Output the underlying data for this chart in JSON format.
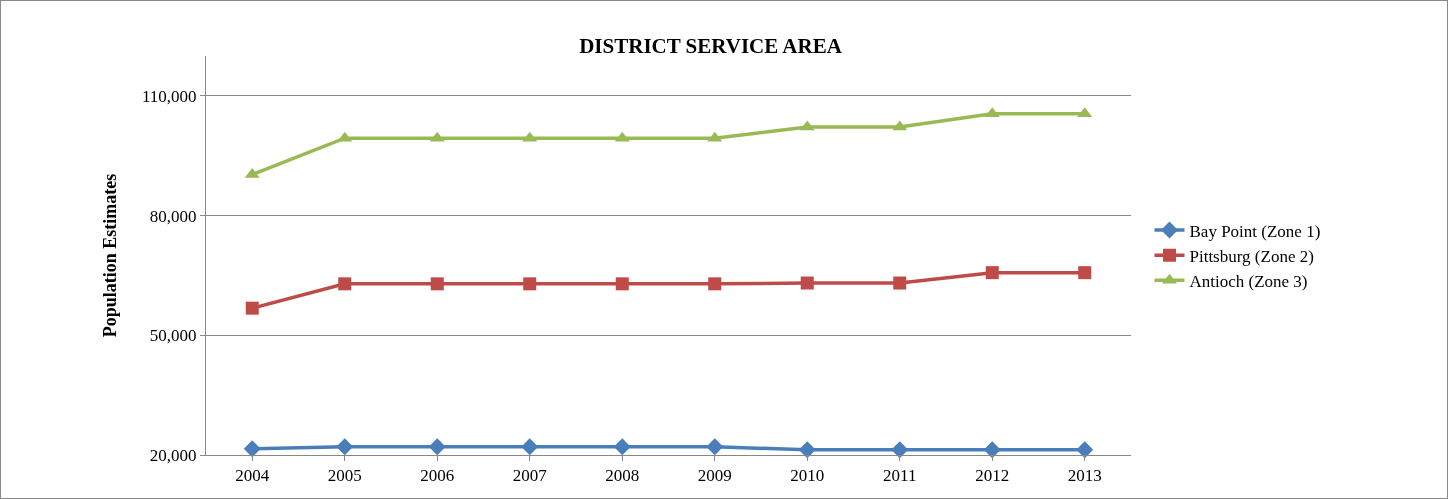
{
  "chart_data": {
    "type": "line",
    "title": "DISTRICT SERVICE AREA",
    "ylabel": "Population Estimates",
    "categories": [
      "2004",
      "2005",
      "2006",
      "2007",
      "2008",
      "2009",
      "2010",
      "2011",
      "2012",
      "2013"
    ],
    "series": [
      {
        "name": "Bay Point (Zone 1)",
        "color": "#4a7ebb",
        "marker": "diamond",
        "values": [
          21550,
          22050,
          22050,
          22050,
          22050,
          22050,
          21300,
          21300,
          21300,
          21300
        ]
      },
      {
        "name": "Pittsburg (Zone 2)",
        "color": "#be4b48",
        "marker": "square",
        "values": [
          56800,
          62900,
          62900,
          62900,
          62900,
          62900,
          63100,
          63100,
          65700,
          65700
        ]
      },
      {
        "name": "Antioch (Zone 3)",
        "color": "#98b954",
        "marker": "triangle",
        "values": [
          90300,
          99400,
          99400,
          99400,
          99400,
          99400,
          102200,
          102200,
          105500,
          105500
        ]
      }
    ],
    "ylim": [
      20000,
      120000
    ],
    "yticks": [
      {
        "value": 20000,
        "label": "20,000"
      },
      {
        "value": 50000,
        "label": "50,000"
      },
      {
        "value": 80000,
        "label": "80,000"
      },
      {
        "value": 110000,
        "label": "110,000"
      }
    ],
    "grid": "y",
    "legend": "right",
    "line_style": "solid"
  }
}
